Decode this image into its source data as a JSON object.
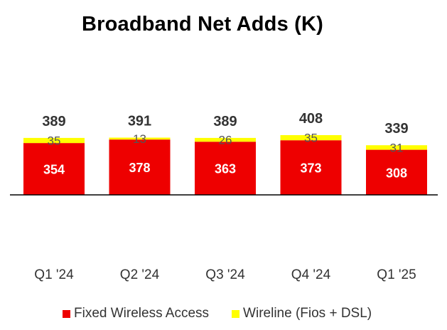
{
  "chart_data": {
    "type": "bar",
    "stacked": true,
    "title": "Broadband Net Adds (K)",
    "categories": [
      "Q1 '24",
      "Q2 '24",
      "Q3 '24",
      "Q4 '24",
      "Q1 '25"
    ],
    "series": [
      {
        "name": "Fixed Wireless Access",
        "values": [
          354,
          378,
          363,
          373,
          308
        ],
        "color": "#ee0000",
        "label_color": "#ffffff"
      },
      {
        "name": "Wireline (Fios + DSL)",
        "values": [
          35,
          13,
          26,
          35,
          31
        ],
        "color": "#ffff00",
        "label_color": "#555555"
      }
    ],
    "totals": [
      389,
      391,
      389,
      408,
      339
    ],
    "xlabel": "",
    "ylabel": "",
    "ylim": [
      0,
      408
    ],
    "grid": false,
    "legend_position": "bottom"
  }
}
